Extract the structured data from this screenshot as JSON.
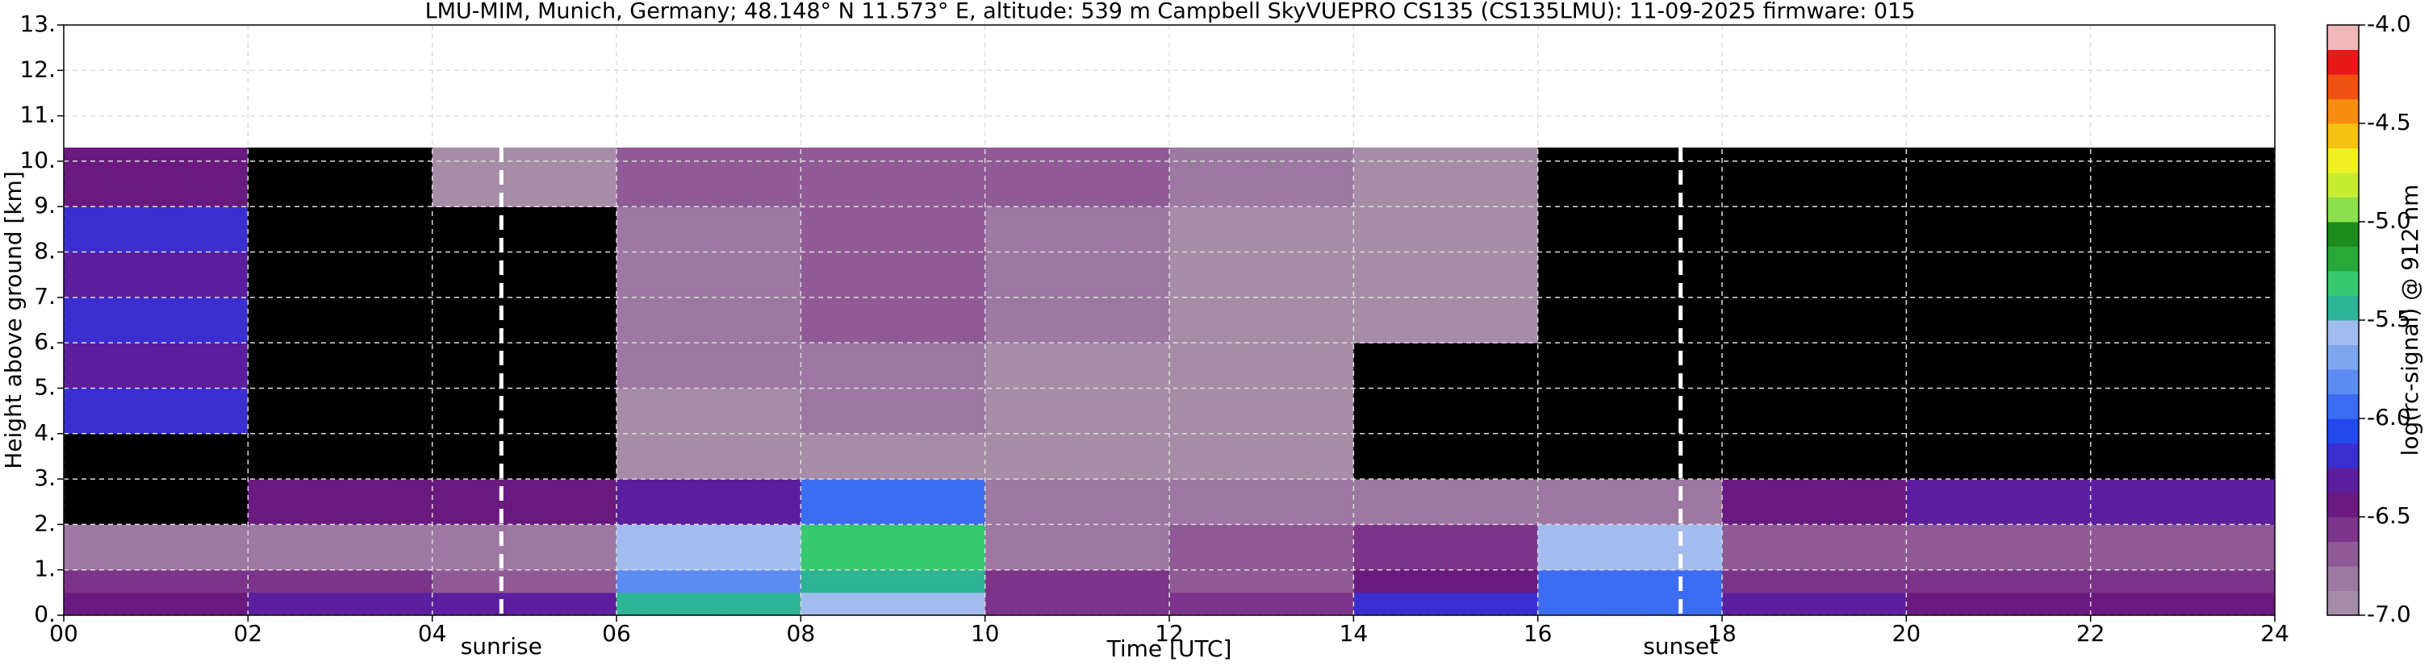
{
  "chart_data": {
    "type": "heatmap",
    "title": "LMU-MIM, Munich, Germany; 48.148° N 11.573° E, altitude: 539 m    Campbell SkyVUEPRO CS135 (CS135LMU): 11-09-2025    firmware: 015",
    "xlabel": "Time [UTC]",
    "ylabel": "Height above ground [km]",
    "colorbar_label": "log(rc-signal) @ 912 nm",
    "x_bins": [
      0,
      2,
      4,
      6,
      8,
      10,
      12,
      14,
      16,
      18,
      20,
      22,
      24
    ],
    "y_bins": [
      0,
      0.5,
      1,
      2,
      3,
      4,
      5,
      6,
      7,
      8,
      9,
      10.3
    ],
    "z": [
      [
        -6.4,
        -6.3,
        -6.3,
        -5.5,
        -5.6,
        -6.6,
        -6.6,
        -6.2,
        -6.0,
        -6.3,
        -6.4,
        -6.4
      ],
      [
        -6.6,
        -6.6,
        -6.7,
        -5.8,
        -5.5,
        -6.6,
        -6.7,
        -6.5,
        -6.0,
        -6.6,
        -6.6,
        -6.6
      ],
      [
        -6.8,
        -6.8,
        -6.8,
        -5.6,
        -5.3,
        -6.8,
        -6.7,
        -6.6,
        -5.6,
        -6.7,
        -6.7,
        -6.7
      ],
      [
        -7.2,
        -6.4,
        -6.4,
        -6.3,
        -5.9,
        -6.8,
        -6.8,
        -6.8,
        -6.8,
        -6.4,
        -6.3,
        -6.3
      ],
      [
        -7.2,
        -7.3,
        -7.2,
        -6.9,
        -6.9,
        -6.9,
        -7.0,
        -7.1,
        -7.1,
        -7.2,
        -7.3,
        -7.3
      ],
      [
        -6.2,
        -7.3,
        -7.1,
        -6.9,
        -6.8,
        -6.9,
        -7.0,
        -7.1,
        -7.1,
        -7.3,
        -7.4,
        -7.4
      ],
      [
        -6.3,
        -7.3,
        -7.1,
        -6.8,
        -6.8,
        -6.9,
        -6.9,
        -7.1,
        -7.1,
        -7.3,
        -7.4,
        -7.4
      ],
      [
        -6.2,
        -7.2,
        -7.1,
        -6.8,
        -6.7,
        -6.8,
        -6.9,
        -7.0,
        -7.1,
        -7.3,
        -7.4,
        -7.4
      ],
      [
        -6.3,
        -7.3,
        -7.1,
        -6.8,
        -6.7,
        -6.8,
        -6.9,
        -7.0,
        -7.1,
        -7.3,
        -7.4,
        -7.4
      ],
      [
        -6.2,
        -7.3,
        -7.1,
        -6.8,
        -6.7,
        -6.8,
        -6.9,
        -7.0,
        -7.1,
        -7.3,
        -7.4,
        -7.4
      ],
      [
        -6.5,
        -7.2,
        -7.0,
        -6.7,
        -6.7,
        -6.7,
        -6.8,
        -7.0,
        -7.1,
        -7.2,
        -7.3,
        -7.3
      ]
    ],
    "colors": [
      "#a68ca6",
      "#9c78a2",
      "#8f5a96",
      "#7c338a",
      "#6a1a7e",
      "#5a1e9e",
      "#3a2ed0",
      "#2248ee",
      "#3c6cf2",
      "#5c8cf2",
      "#7ea6f0",
      "#a2bcf0",
      "#2cb494",
      "#38c870",
      "#28a83a",
      "#1c8c1c",
      "#8ce04c",
      "#c8ec30",
      "#f0f020",
      "#f8c010",
      "#f88c10",
      "#f05010",
      "#e81818",
      "#f0b8b8"
    ],
    "under_color": "#000000",
    "empty_color": "#ffffff",
    "zlim": [
      -7,
      -4
    ],
    "zticks": [
      {
        "value": -7,
        "label": "-7.0"
      },
      -6.5,
      {
        "value": -6,
        "label": "-6.0"
      },
      -5.5,
      {
        "value": -5,
        "label": "-5.0"
      },
      -4.5,
      {
        "value": -4,
        "label": "-4.0"
      }
    ],
    "xlim": [
      0,
      24
    ],
    "xticks": [
      {
        "value": 0,
        "label": "00"
      },
      {
        "value": 2,
        "label": "02"
      },
      {
        "value": 4,
        "label": "04"
      },
      {
        "value": 6,
        "label": "06"
      },
      {
        "value": 8,
        "label": "08"
      },
      10,
      12,
      14,
      16,
      18,
      20,
      22,
      24
    ],
    "ylim": [
      0,
      13
    ],
    "yticks": [
      {
        "value": 0,
        "label": "0."
      },
      {
        "value": 1,
        "label": "1."
      },
      {
        "value": 2,
        "label": "2."
      },
      {
        "value": 3,
        "label": "3."
      },
      {
        "value": 4,
        "label": "4."
      },
      {
        "value": 5,
        "label": "5."
      },
      {
        "value": 6,
        "label": "6."
      },
      {
        "value": 7,
        "label": "7."
      },
      {
        "value": 8,
        "label": "8."
      },
      {
        "value": 9,
        "label": "9."
      },
      {
        "value": 10,
        "label": "10."
      },
      {
        "value": 11,
        "label": "11."
      },
      {
        "value": 12,
        "label": "12."
      },
      {
        "value": 13,
        "label": "13."
      }
    ],
    "grid": true,
    "markers": [
      {
        "label": "sunrise",
        "x": 4.75
      },
      {
        "label": "sunset",
        "x": 17.55
      }
    ]
  }
}
